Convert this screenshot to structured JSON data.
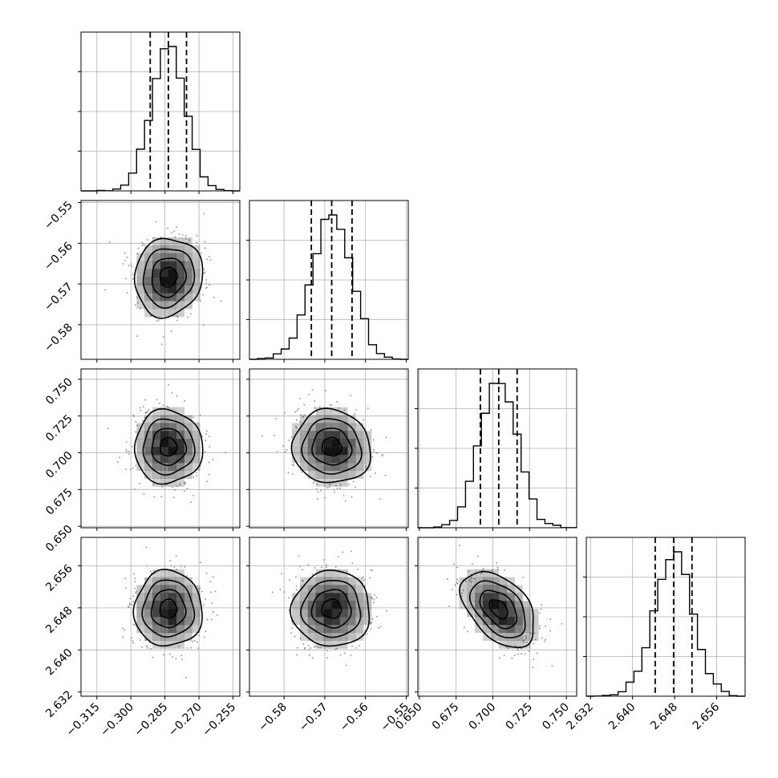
{
  "chart_data": {
    "type": "corner",
    "n_params": 4,
    "grid": true,
    "parameters": [
      {
        "mean": -0.2835,
        "std": 0.0075,
        "range": [
          -0.322,
          -0.252
        ],
        "ticks": [
          -0.315,
          -0.3,
          -0.285,
          -0.27,
          -0.255
        ],
        "tick_labels": [
          "−0.315",
          "−0.300",
          "−0.285",
          "−0.270",
          "−0.255"
        ],
        "quantiles": [
          -0.2915,
          -0.2835,
          -0.2755
        ]
      },
      {
        "mean": -0.5683,
        "std": 0.0048,
        "range": [
          -0.5885,
          -0.5495
        ],
        "ticks": [
          -0.58,
          -0.57,
          -0.56,
          -0.55
        ],
        "tick_labels": [
          "−0.58",
          "−0.57",
          "−0.56",
          "−0.55"
        ],
        "quantiles": [
          -0.5733,
          -0.5683,
          -0.5633
        ]
      },
      {
        "mean": 0.704,
        "std": 0.0125,
        "range": [
          0.649,
          0.757
        ],
        "ticks": [
          0.65,
          0.675,
          0.7,
          0.725,
          0.75
        ],
        "tick_labels": [
          "0.650",
          "0.675",
          "0.700",
          "0.725",
          "0.750"
        ],
        "quantiles": [
          0.6915,
          0.704,
          0.7165
        ]
      },
      {
        "mean": 2.6478,
        "std": 0.0036,
        "range": [
          2.6312,
          2.6614
        ],
        "ticks": [
          2.632,
          2.64,
          2.648,
          2.656
        ],
        "tick_labels": [
          "2.632",
          "2.640",
          "2.648",
          "2.656"
        ],
        "quantiles": [
          2.6443,
          2.6478,
          2.6513
        ]
      }
    ],
    "correlations": [
      [
        0,
        1,
        0.08
      ],
      [
        0,
        2,
        0.0
      ],
      [
        0,
        3,
        0.0
      ],
      [
        1,
        2,
        -0.05
      ],
      [
        1,
        3,
        0.0
      ],
      [
        2,
        3,
        -0.45
      ]
    ],
    "colors": {
      "scatter": "#8c8c8c",
      "density": "#000000",
      "lines": "#000000",
      "grid": "#b0b0b0"
    }
  }
}
